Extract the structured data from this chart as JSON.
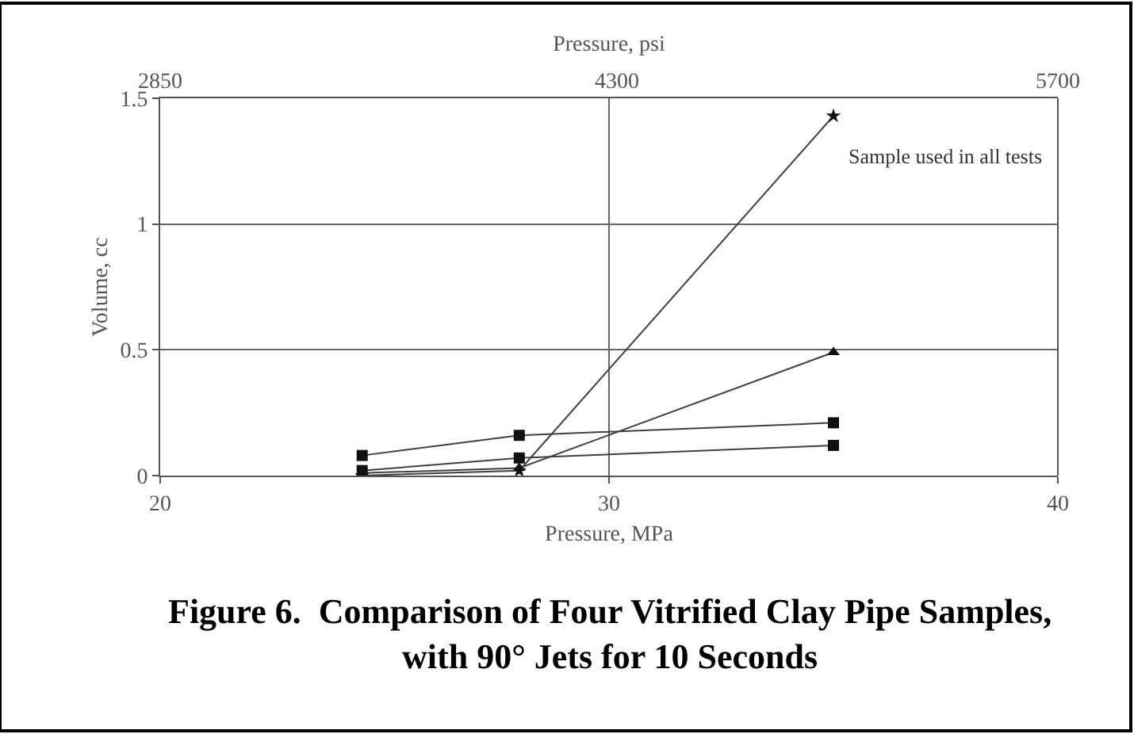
{
  "chart_data": {
    "type": "line",
    "title": "Figure 6.  Comparison of Four Vitrified Clay Pipe Samples,\nwith 90° Jets for 10 Seconds",
    "xlabel": "Pressure, MPa",
    "ylabel": "Volume, cc",
    "x2label": "Pressure, psi",
    "x": [
      24.5,
      28,
      35
    ],
    "series": [
      {
        "color": "#404040",
        "marker": "star",
        "values": [
          0.0,
          0.02,
          1.43
        ]
      },
      {
        "color": "#404040",
        "marker": "triangle",
        "values": [
          0.01,
          0.03,
          0.49
        ]
      },
      {
        "color": "#404040",
        "marker": "square",
        "values": [
          0.08,
          0.16,
          0.21
        ]
      },
      {
        "color": "#404040",
        "marker": "square",
        "values": [
          0.02,
          0.07,
          0.12
        ]
      }
    ],
    "xlim": [
      20,
      40
    ],
    "xticks": [
      20,
      30,
      40
    ],
    "x2lim": [
      2850,
      5700
    ],
    "x2ticks": [
      2850,
      4300,
      5700
    ],
    "ylim": [
      0,
      1.5
    ],
    "yticks": [
      0,
      0.5,
      1,
      1.5
    ],
    "grid": true,
    "line_style": "solid",
    "annotations": [
      "Sample used in all tests"
    ]
  }
}
